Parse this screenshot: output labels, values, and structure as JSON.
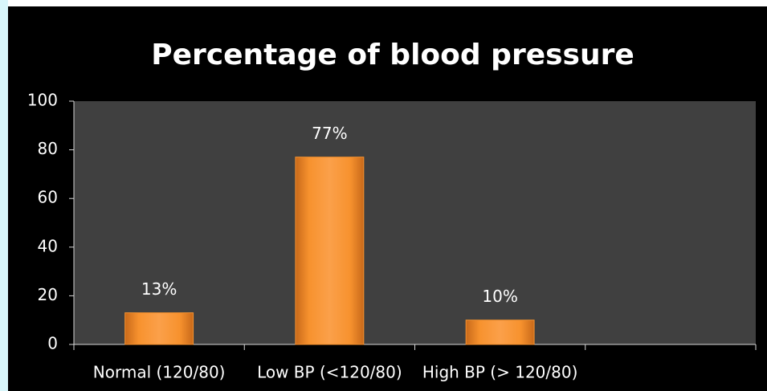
{
  "chart_data": {
    "type": "bar",
    "title": "Percentage of blood pressure",
    "categories": [
      "Normal (120/80)",
      "Low BP (<120/80)",
      "High BP (> 120/80)",
      null
    ],
    "values": [
      13,
      77,
      10,
      null
    ],
    "value_labels": [
      "13%",
      "77%",
      "10%",
      null
    ],
    "color": "#f7922e",
    "ylim": [
      0,
      100
    ],
    "yticks": [
      0,
      20,
      40,
      60,
      80,
      100
    ],
    "grid": false
  }
}
